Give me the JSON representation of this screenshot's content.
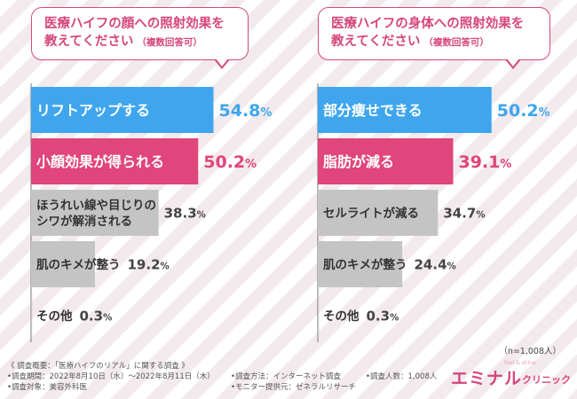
{
  "left_question": {
    "line1": "医療ハイフの顔への照射効果を",
    "line2": "教えてください",
    "note": "（複数回答可）"
  },
  "right_question": {
    "line1": "医療ハイフの身体への照射効果を",
    "line2": "教えてください",
    "note": "（複数回答可）"
  },
  "colors": {
    "blue": "#3fa6ee",
    "pink": "#e0457c",
    "gray": "#c4c4c4",
    "title": "#d6467b"
  },
  "chart_data": [
    {
      "type": "bar",
      "orientation": "horizontal",
      "categories": [
        [
          "リフトアップする"
        ],
        [
          "小顔効果が得られる"
        ],
        [
          "ほうれい線や目じりの",
          "シワが解消される"
        ],
        [
          "肌のキメが整う"
        ],
        [
          "その他"
        ]
      ],
      "values": [
        54.8,
        50.2,
        38.3,
        19.2,
        0.3
      ],
      "labels": [
        "54.8%",
        "50.2%",
        "38.3%",
        "19.2%",
        "0.3%"
      ],
      "highlight": [
        "blue",
        "pink",
        "gray",
        "gray",
        "gray"
      ],
      "xlim": [
        0,
        100
      ]
    },
    {
      "type": "bar",
      "orientation": "horizontal",
      "categories": [
        [
          "部分痩せできる"
        ],
        [
          "脂肪が減る"
        ],
        [
          "セルライトが減る"
        ],
        [
          "肌のキメが整う"
        ],
        [
          "その他"
        ]
      ],
      "values": [
        50.2,
        39.1,
        34.7,
        24.4,
        0.3
      ],
      "labels": [
        "50.2%",
        "39.1%",
        "34.7%",
        "24.4%",
        "0.3%"
      ],
      "highlight": [
        "blue",
        "pink",
        "gray",
        "gray",
        "gray"
      ],
      "xlim": [
        0,
        100
      ]
    }
  ],
  "n_note": "（n=1,008人）",
  "footer": {
    "summary": "《 調査概要：「医療ハイフのリアル」に関する調査 》",
    "period": "•調査期間：2022年8月10日（水）〜2022年8月11日（木）",
    "target": "•調査対象：美容外科医",
    "method": "•調査方法：インターネット調査",
    "provider": "•モニター提供元：ゼネラルリサーチ",
    "count": "•調査人数：1,008人"
  },
  "logo": {
    "main": "エミナル",
    "sub": "クリニック",
    "tiny": "feel & shine"
  }
}
